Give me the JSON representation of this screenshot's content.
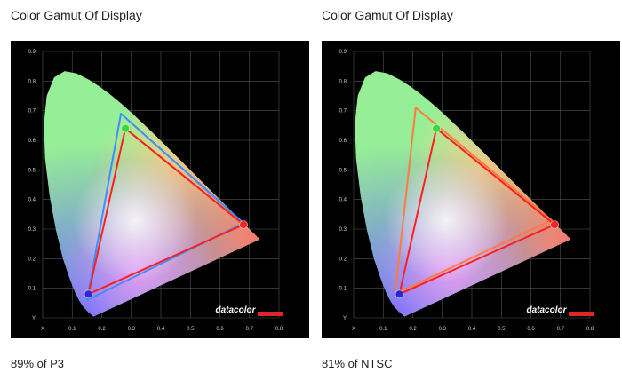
{
  "colors": {
    "background": "#000000",
    "grid": "#555555",
    "measured": "#ff1e1e",
    "p3_reference": "#3a8eff",
    "ntsc_reference": "#ff7a3c",
    "red_primary": "#ff2020",
    "green_primary": "#3ad83a",
    "blue_primary": "#2a28d8",
    "logo_bar": "#e0262a"
  },
  "logo": {
    "text": "datacolor"
  },
  "chart_data": [
    {
      "type": "scatter",
      "title": "Color Gamut Of Display",
      "caption": "89% of P3",
      "xlabel": "X",
      "ylabel": "Y",
      "xlim": [
        0,
        0.8
      ],
      "ylim": [
        0,
        0.9
      ],
      "x_ticks": [
        "X",
        "0.1",
        "0.2",
        "0.3",
        "0.4",
        "0.5",
        "0.6",
        "0.7",
        "0.8"
      ],
      "y_ticks": [
        "Y",
        "0.1",
        "0.2",
        "0.3",
        "0.4",
        "0.5",
        "0.6",
        "0.7",
        "0.8",
        "0.9"
      ],
      "grid": true,
      "series": [
        {
          "key": "reference",
          "color": "#3a8eff",
          "points": [
            [
              0.68,
              0.32
            ],
            [
              0.265,
              0.69
            ],
            [
              0.15,
              0.06
            ]
          ]
        },
        {
          "key": "measured",
          "color": "#ff1e1e",
          "points": [
            [
              0.68,
              0.315
            ],
            [
              0.28,
              0.64
            ],
            [
              0.155,
              0.08
            ]
          ]
        }
      ],
      "primaries": [
        {
          "key": "red",
          "x": 0.68,
          "y": 0.315,
          "color": "#ff2020"
        },
        {
          "key": "green",
          "x": 0.28,
          "y": 0.64,
          "color": "#3ad83a"
        },
        {
          "key": "blue",
          "x": 0.155,
          "y": 0.08,
          "color": "#2a28d8"
        }
      ]
    },
    {
      "type": "scatter",
      "title": "Color Gamut Of Display",
      "caption": "81% of NTSC",
      "xlabel": "X",
      "ylabel": "Y",
      "xlim": [
        0,
        0.8
      ],
      "ylim": [
        0,
        0.9
      ],
      "x_ticks": [
        "X",
        "0.1",
        "0.2",
        "0.3",
        "0.4",
        "0.5",
        "0.6",
        "0.7",
        "0.8"
      ],
      "y_ticks": [
        "Y",
        "0.1",
        "0.2",
        "0.3",
        "0.4",
        "0.5",
        "0.6",
        "0.7",
        "0.8",
        "0.9"
      ],
      "grid": true,
      "series": [
        {
          "key": "reference",
          "color": "#ff7a3c",
          "points": [
            [
              0.67,
              0.33
            ],
            [
              0.21,
              0.71
            ],
            [
              0.14,
              0.08
            ]
          ]
        },
        {
          "key": "measured",
          "color": "#ff1e1e",
          "points": [
            [
              0.68,
              0.315
            ],
            [
              0.28,
              0.64
            ],
            [
              0.155,
              0.08
            ]
          ]
        }
      ],
      "primaries": [
        {
          "key": "red",
          "x": 0.68,
          "y": 0.315,
          "color": "#ff2020"
        },
        {
          "key": "green",
          "x": 0.28,
          "y": 0.64,
          "color": "#3ad83a"
        },
        {
          "key": "blue",
          "x": 0.155,
          "y": 0.08,
          "color": "#2a28d8"
        }
      ]
    }
  ]
}
